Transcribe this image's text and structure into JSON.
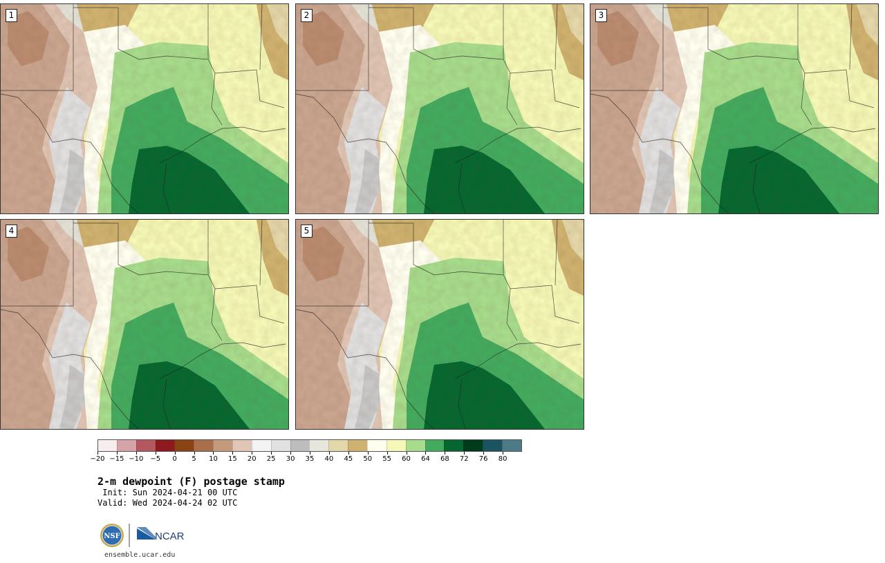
{
  "panels": [
    {
      "label": "1"
    },
    {
      "label": "2"
    },
    {
      "label": "3"
    },
    {
      "label": "4"
    },
    {
      "label": "5"
    }
  ],
  "colorbar": {
    "colors": [
      "#f6eeee",
      "#d6a3a8",
      "#b4575e",
      "#8e1a1f",
      "#8a4312",
      "#aa6f4a",
      "#c49a7c",
      "#e1c6b6",
      "#f4f4f4",
      "#e1e1e1",
      "#bdbdbd",
      "#e7e6dc",
      "#e4d7a8",
      "#cfb26f",
      "#fffff0",
      "#f5f8b6",
      "#a7dc8c",
      "#42ab5e",
      "#05672f",
      "#003c1c",
      "#1b5461",
      "#4c7b85"
    ],
    "tick_labels": [
      "−20",
      "−15",
      "−10",
      "−5",
      "0",
      "5",
      "10",
      "15",
      "20",
      "25",
      "30",
      "35",
      "40",
      "45",
      "50",
      "55",
      "60",
      "64",
      "68",
      "72",
      "76",
      "80"
    ]
  },
  "title": "2-m dewpoint (F) postage stamp",
  "init_line": " Init: Sun 2024-04-21 00 UTC",
  "valid_line": "Valid: Wed 2024-04-24 02 UTC",
  "logos": {
    "nsf_text": "NSF",
    "ncar_text": "NCAR"
  },
  "url": "ensemble.ucar.edu"
}
